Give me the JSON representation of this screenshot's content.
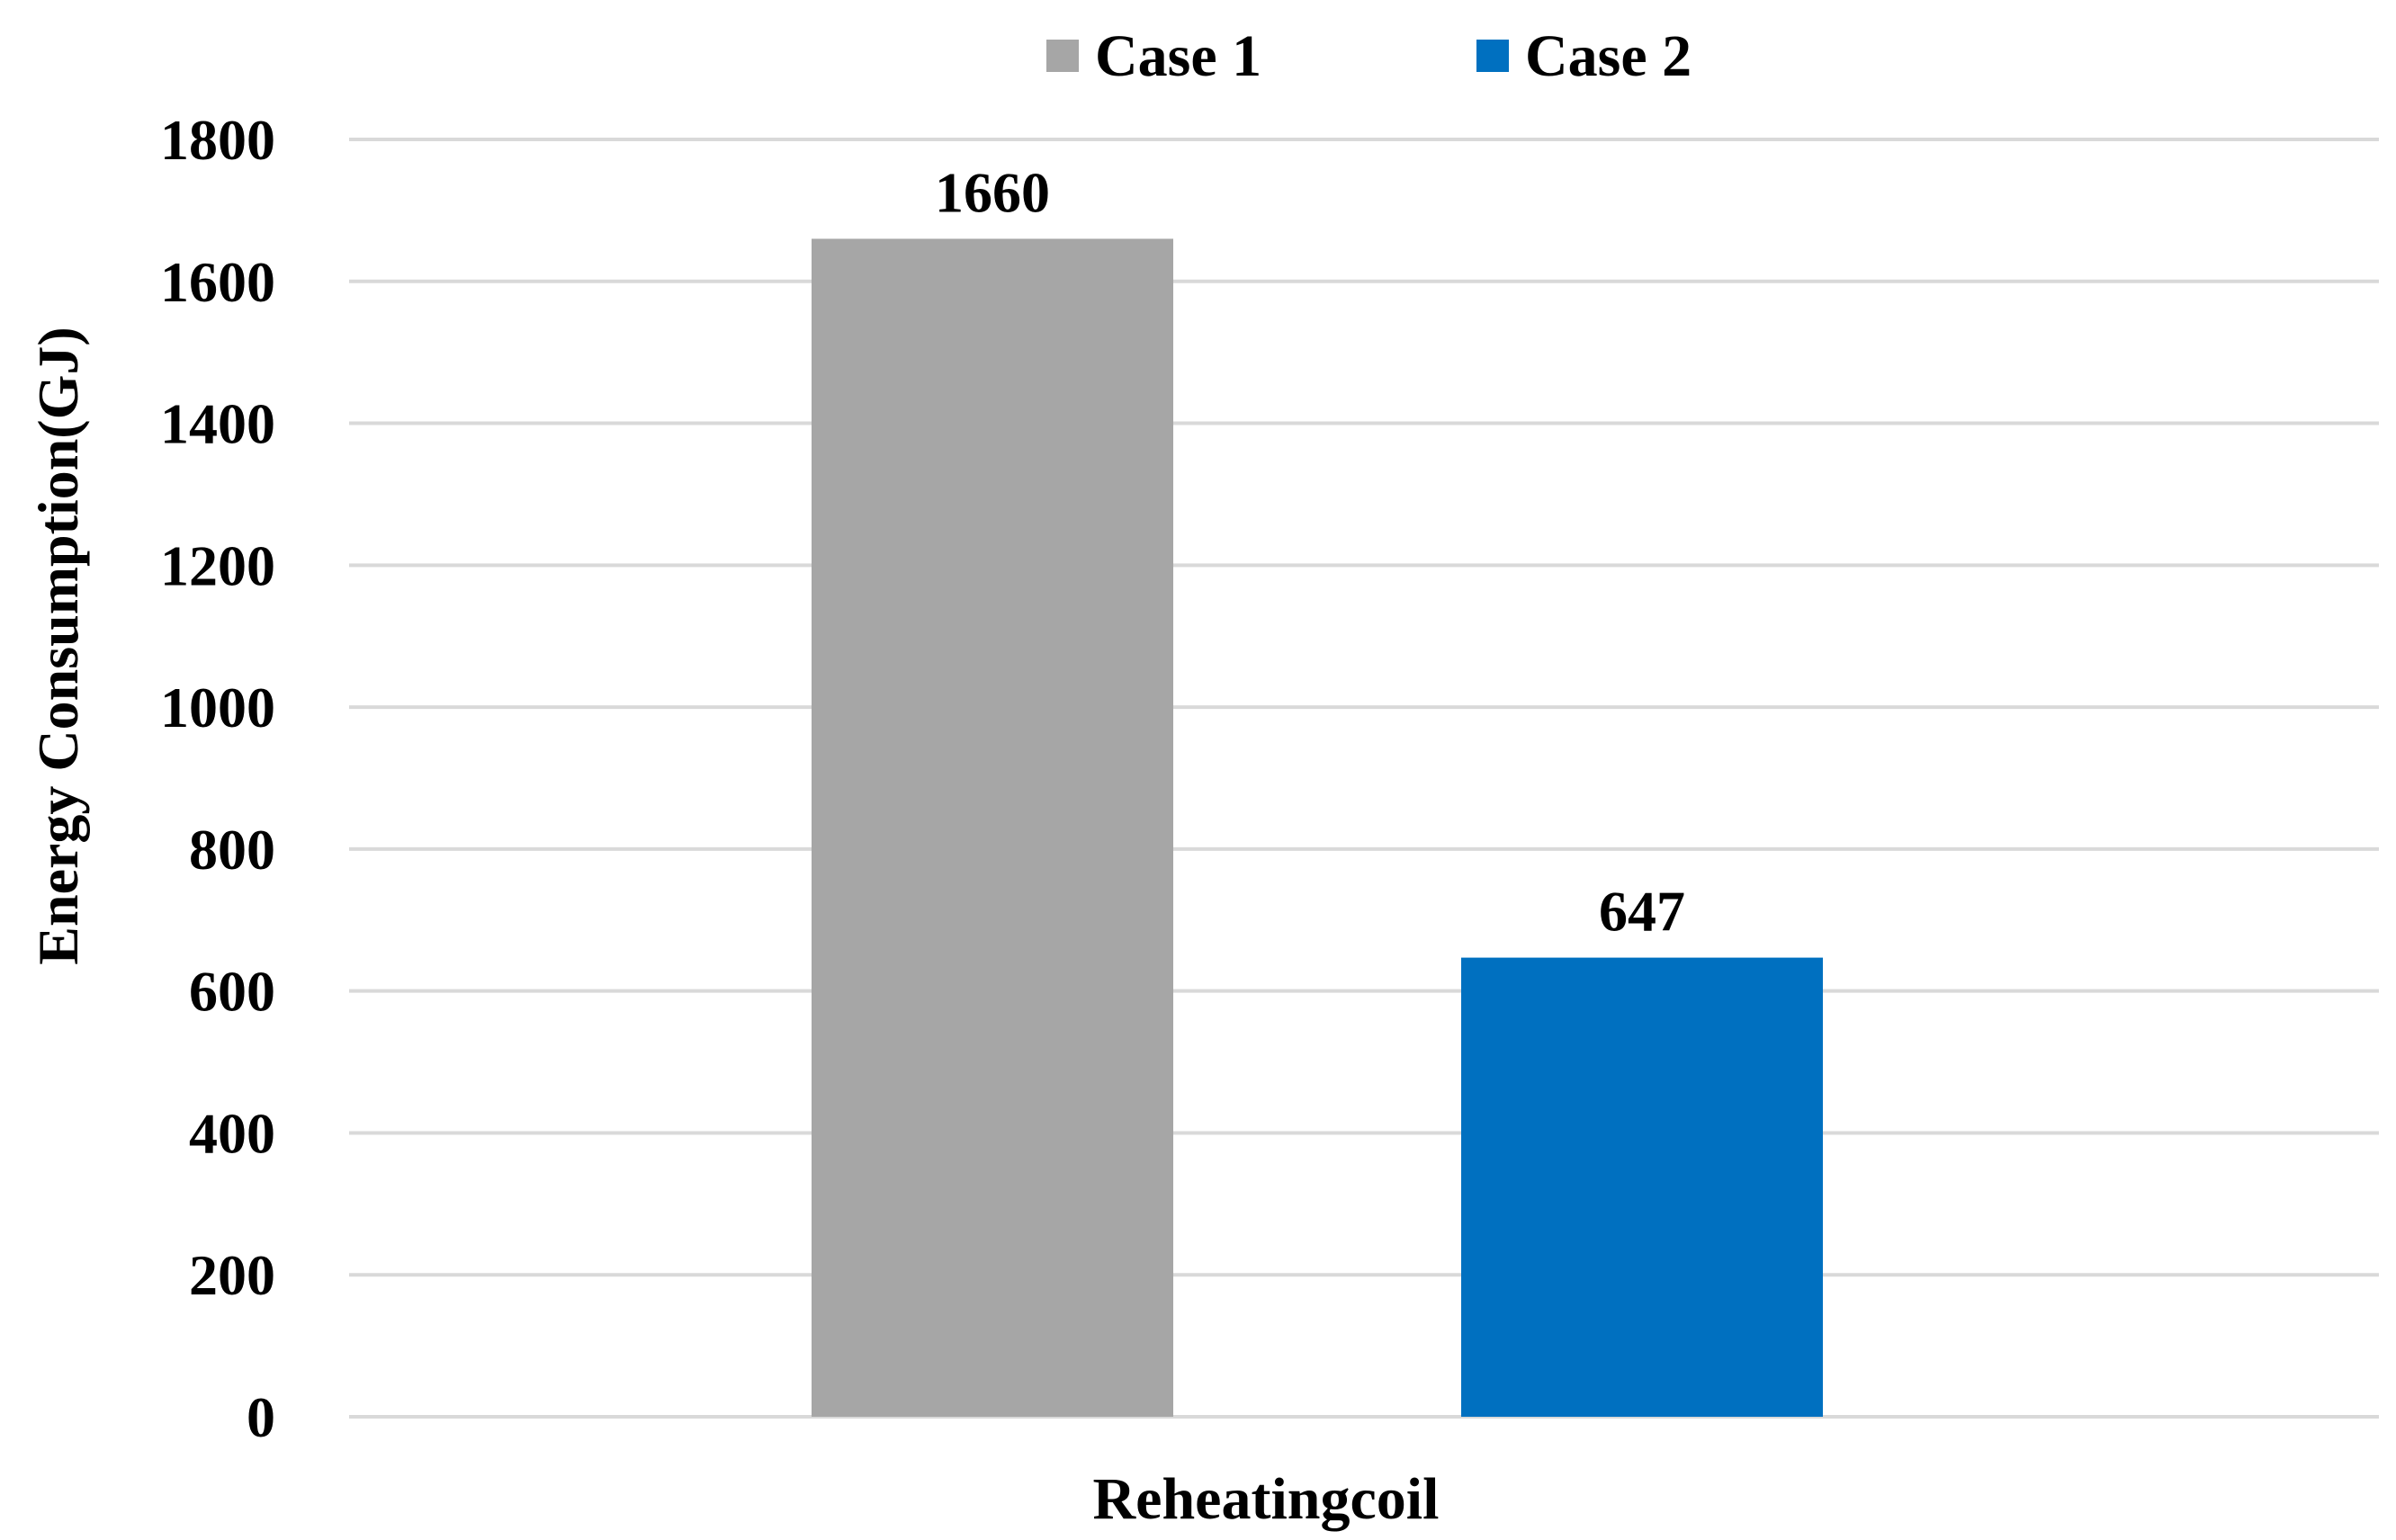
{
  "chart_data": {
    "type": "bar",
    "title": "",
    "xlabel": "Reheatingcoil",
    "ylabel": "Energy Consumption(GJ)",
    "ylim": [
      0,
      1800
    ],
    "yticks": [
      0,
      200,
      400,
      600,
      800,
      1000,
      1200,
      1400,
      1600,
      1800
    ],
    "grid": true,
    "legend_position": "top",
    "categories": [
      "Reheatingcoil"
    ],
    "series": [
      {
        "name": "Case 1",
        "color": "#a6a6a6",
        "values": [
          1660
        ]
      },
      {
        "name": "Case 2",
        "color": "#0070c0",
        "values": [
          647
        ]
      }
    ]
  }
}
